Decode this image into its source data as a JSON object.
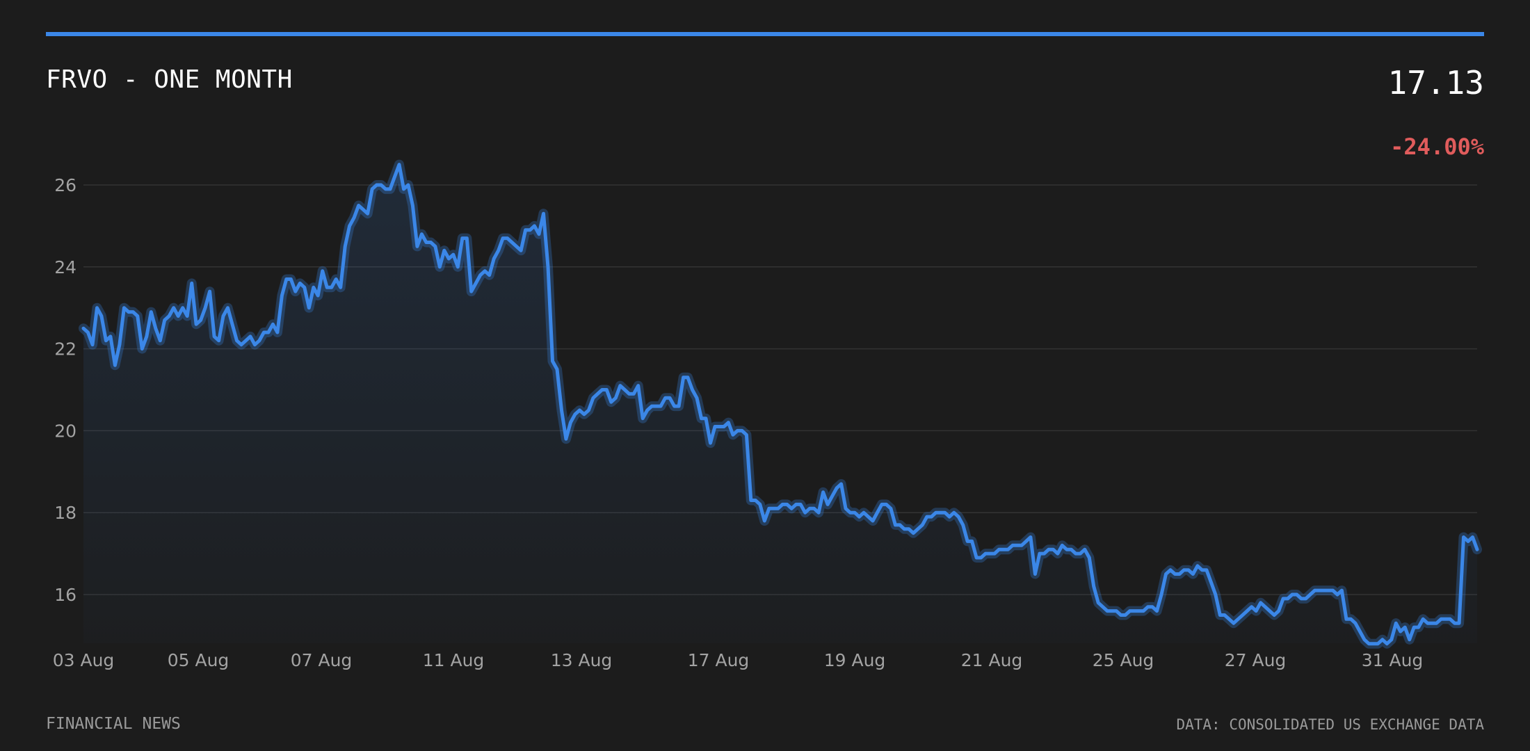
{
  "header": {
    "title": "FRVO - ONE MONTH",
    "price": "17.13",
    "change": "-24.00%"
  },
  "footer": {
    "source_left": "FINANCIAL NEWS",
    "source_right": "DATA: CONSOLIDATED US EXCHANGE DATA"
  },
  "colors": {
    "accent": "#3b87e8",
    "negative": "#e05c5c",
    "background": "#1c1c1c",
    "grid": "#333333"
  },
  "chart_data": {
    "type": "area",
    "title": "FRVO - ONE MONTH",
    "xlabel": "",
    "ylabel": "",
    "ylim": [
      14.8,
      26.9
    ],
    "grid": true,
    "y_ticks": [
      16,
      18,
      20,
      22,
      24,
      26
    ],
    "x_ticks": [
      "03 Aug",
      "05 Aug",
      "07 Aug",
      "11 Aug",
      "13 Aug",
      "17 Aug",
      "19 Aug",
      "21 Aug",
      "25 Aug",
      "27 Aug",
      "31 Aug"
    ],
    "series": [
      {
        "values": [
          22.5,
          22.4,
          22.1,
          23.0,
          22.8,
          22.2,
          22.3,
          21.6,
          22.1,
          23.0,
          22.9,
          22.9,
          22.8,
          22.0,
          22.3,
          22.9,
          22.5,
          22.2,
          22.7,
          22.8,
          23.0,
          22.8,
          23.0,
          22.8,
          23.6,
          22.6,
          22.7,
          23.0,
          23.4,
          22.3,
          22.2,
          22.8,
          23.0,
          22.6,
          22.2,
          22.1,
          22.2,
          22.3,
          22.1,
          22.2,
          22.4,
          22.4,
          22.6,
          22.4,
          23.3,
          23.7,
          23.7,
          23.4,
          23.6,
          23.5,
          23.0,
          23.5,
          23.3,
          23.9,
          23.5,
          23.5,
          23.7,
          23.5,
          24.5,
          25.0,
          25.2,
          25.5,
          25.4,
          25.3,
          25.9,
          26.0,
          26.0,
          25.9,
          25.9,
          26.2,
          26.5,
          25.9,
          26.0,
          25.5,
          24.5,
          24.8,
          24.6,
          24.6,
          24.5,
          24.0,
          24.4,
          24.2,
          24.3,
          24.0,
          24.7,
          24.7,
          23.4,
          23.6,
          23.8,
          23.9,
          23.8,
          24.2,
          24.4,
          24.7,
          24.7,
          24.6,
          24.5,
          24.4,
          24.9,
          24.9,
          25.0,
          24.8,
          25.3,
          24.0,
          21.7,
          21.5,
          20.5,
          19.8,
          20.2,
          20.4,
          20.5,
          20.4,
          20.5,
          20.8,
          20.9,
          21.0,
          21.0,
          20.7,
          20.8,
          21.1,
          21.0,
          20.9,
          20.9,
          21.1,
          20.3,
          20.5,
          20.6,
          20.6,
          20.6,
          20.8,
          20.8,
          20.6,
          20.6,
          21.3,
          21.3,
          21.0,
          20.8,
          20.3,
          20.3,
          19.7,
          20.1,
          20.1,
          20.1,
          20.2,
          19.9,
          20.0,
          20.0,
          19.9,
          18.3,
          18.3,
          18.2,
          17.8,
          18.1,
          18.1,
          18.1,
          18.2,
          18.2,
          18.1,
          18.2,
          18.2,
          18.0,
          18.1,
          18.1,
          18.0,
          18.5,
          18.2,
          18.4,
          18.6,
          18.7,
          18.1,
          18.0,
          18.0,
          17.9,
          18.0,
          17.9,
          17.8,
          18.0,
          18.2,
          18.2,
          18.1,
          17.7,
          17.7,
          17.6,
          17.6,
          17.5,
          17.6,
          17.7,
          17.9,
          17.9,
          18.0,
          18.0,
          18.0,
          17.9,
          18.0,
          17.9,
          17.7,
          17.3,
          17.3,
          16.9,
          16.9,
          17.0,
          17.0,
          17.0,
          17.1,
          17.1,
          17.1,
          17.2,
          17.2,
          17.2,
          17.3,
          17.4,
          16.5,
          17.0,
          17.0,
          17.1,
          17.1,
          17.0,
          17.2,
          17.1,
          17.1,
          17.0,
          17.0,
          17.1,
          16.9,
          16.2,
          15.8,
          15.7,
          15.6,
          15.6,
          15.6,
          15.5,
          15.5,
          15.6,
          15.6,
          15.6,
          15.6,
          15.7,
          15.7,
          15.6,
          16.0,
          16.5,
          16.6,
          16.5,
          16.5,
          16.6,
          16.6,
          16.5,
          16.7,
          16.6,
          16.6,
          16.3,
          16.0,
          15.5,
          15.5,
          15.4,
          15.3,
          15.4,
          15.5,
          15.6,
          15.7,
          15.6,
          15.8,
          15.7,
          15.6,
          15.5,
          15.6,
          15.9,
          15.9,
          16.0,
          16.0,
          15.9,
          15.9,
          16.0,
          16.1,
          16.1,
          16.1,
          16.1,
          16.1,
          16.0,
          16.1,
          15.4,
          15.4,
          15.3,
          15.1,
          14.9,
          14.8,
          14.8,
          14.8,
          14.9,
          14.8,
          14.9,
          15.3,
          15.1,
          15.2,
          14.9,
          15.2,
          15.2,
          15.4,
          15.3,
          15.3,
          15.3,
          15.4,
          15.4,
          15.4,
          15.3,
          15.3,
          17.4,
          17.3,
          17.4,
          17.1
        ]
      }
    ]
  }
}
